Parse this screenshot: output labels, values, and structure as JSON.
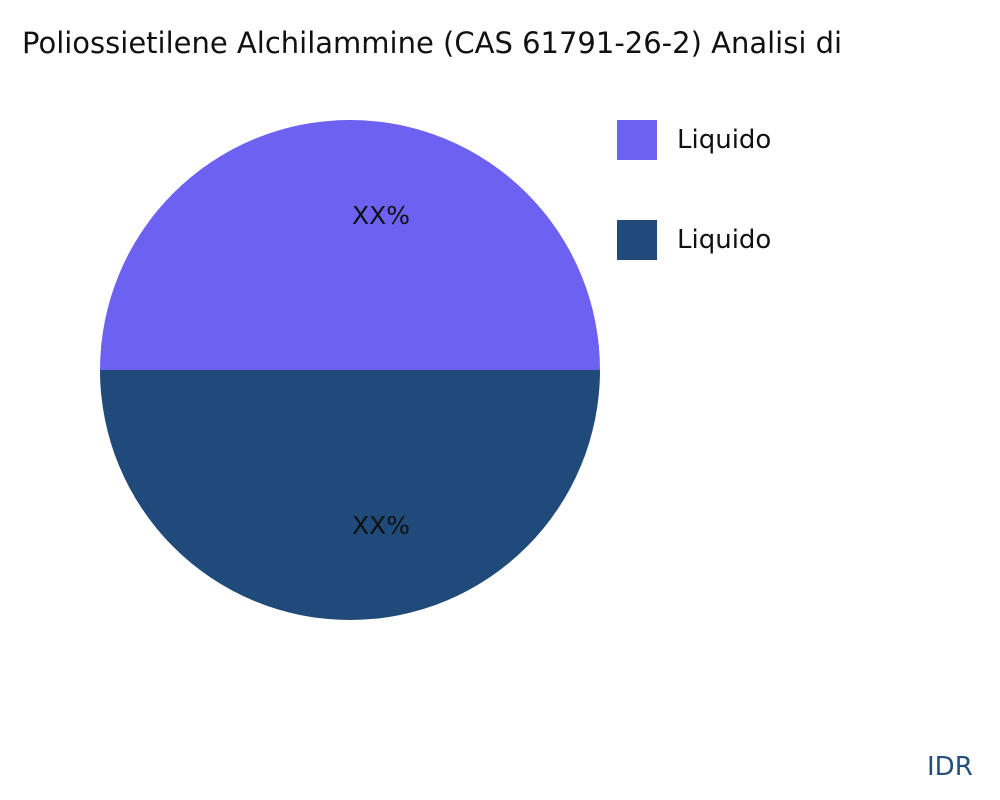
{
  "chart_data": {
    "type": "pie",
    "title": "Poliossietilene Alchilammine (CAS 61791-26-2) Analisi di",
    "slices": [
      {
        "label": "Liquido",
        "value": 50,
        "data_label": "XX%",
        "color": "#6c61f1"
      },
      {
        "label": "Liquido",
        "value": 50,
        "data_label": "XX%",
        "color": "#1f4a79"
      }
    ],
    "legend_position": "right"
  },
  "watermark": "IDR"
}
